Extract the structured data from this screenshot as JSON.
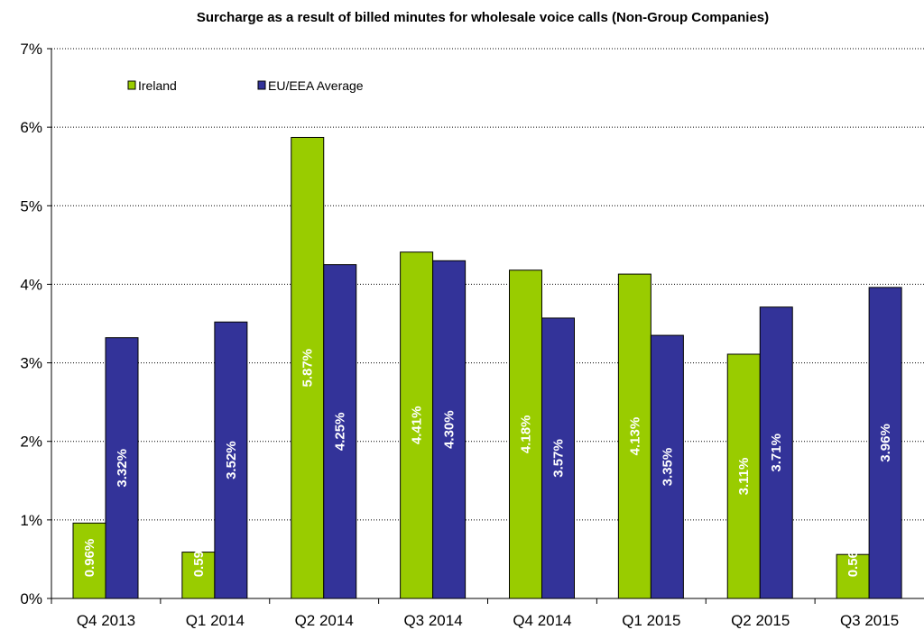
{
  "chart_data": {
    "type": "bar",
    "title": "Surcharge as a result of billed minutes for wholesale voice calls (Non-Group Companies)",
    "xlabel": "",
    "ylabel": "",
    "categories": [
      "Q4 2013",
      "Q1 2014",
      "Q2 2014",
      "Q3 2014",
      "Q4 2014",
      "Q1 2015",
      "Q2 2015",
      "Q3 2015"
    ],
    "series": [
      {
        "name": "Ireland",
        "color": "#99CC00",
        "values": [
          0.96,
          0.59,
          5.87,
          4.41,
          4.18,
          4.13,
          3.11,
          0.56
        ],
        "labels": [
          "0.96%",
          "0.59%",
          "5.87%",
          "4.41%",
          "4.18%",
          "4.13%",
          "3.11%",
          "0.56%"
        ]
      },
      {
        "name": "EU/EEA Average",
        "color": "#333399",
        "values": [
          3.32,
          3.52,
          4.25,
          4.3,
          3.57,
          3.35,
          3.71,
          3.96
        ],
        "labels": [
          "3.32%",
          "3.52%",
          "4.25%",
          "4.30%",
          "3.57%",
          "3.35%",
          "3.71%",
          "3.96%"
        ]
      }
    ],
    "ylim": [
      0,
      7
    ],
    "yticks": [
      0,
      1,
      2,
      3,
      4,
      5,
      6,
      7
    ],
    "ytick_labels": [
      "0%",
      "1%",
      "2%",
      "3%",
      "4%",
      "5%",
      "6%",
      "7%"
    ],
    "grid": "horizontal-dotted",
    "legend_position": "top-left"
  }
}
